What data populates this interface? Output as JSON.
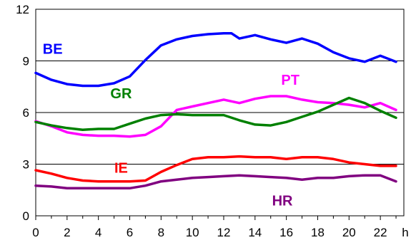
{
  "chart_data": {
    "type": "line",
    "title": "",
    "xlabel": "",
    "ylabel": "",
    "x_unit": "h",
    "xlim": [
      0,
      23.5
    ],
    "ylim": [
      0,
      12
    ],
    "x_ticks": [
      0,
      2,
      4,
      6,
      8,
      10,
      12,
      14,
      16,
      18,
      20,
      22
    ],
    "y_ticks": [
      0,
      3,
      6,
      9,
      12
    ],
    "grid": "horizontal",
    "legend": "labels-inline",
    "series": [
      {
        "name": "BE",
        "color": "#0000ff",
        "x": [
          0,
          1,
          2,
          3,
          4,
          5,
          6,
          7,
          8,
          9,
          10,
          11,
          12,
          12.5,
          13,
          14,
          15,
          16,
          17,
          18,
          19,
          20,
          21,
          22,
          23
        ],
        "values": [
          8.3,
          7.9,
          7.65,
          7.55,
          7.55,
          7.7,
          8.1,
          9.05,
          9.9,
          10.25,
          10.45,
          10.55,
          10.6,
          10.6,
          10.3,
          10.5,
          10.25,
          10.05,
          10.3,
          10.0,
          9.5,
          9.15,
          8.95,
          9.3,
          8.95
        ]
      },
      {
        "name": "PT",
        "color": "#ff00ff",
        "x": [
          0,
          1,
          2,
          3,
          4,
          5,
          6,
          7,
          8,
          9,
          10,
          11,
          12,
          13,
          14,
          15,
          16,
          17,
          18,
          19,
          20,
          21,
          22,
          23
        ],
        "values": [
          5.5,
          5.2,
          4.85,
          4.7,
          4.65,
          4.65,
          4.6,
          4.7,
          5.2,
          6.15,
          6.35,
          6.55,
          6.75,
          6.55,
          6.8,
          6.95,
          6.95,
          6.75,
          6.6,
          6.55,
          6.45,
          6.3,
          6.55,
          6.15
        ]
      },
      {
        "name": "GR",
        "color": "#008000",
        "x": [
          0,
          1,
          2,
          3,
          4,
          5,
          6,
          7,
          8,
          9,
          10,
          11,
          12,
          13,
          14,
          15,
          16,
          17,
          18,
          19,
          20,
          21,
          22,
          23
        ],
        "values": [
          5.45,
          5.25,
          5.1,
          5.0,
          5.05,
          5.05,
          5.35,
          5.65,
          5.85,
          5.9,
          5.85,
          5.85,
          5.85,
          5.55,
          5.3,
          5.25,
          5.45,
          5.75,
          6.05,
          6.45,
          6.85,
          6.55,
          6.1,
          5.7
        ]
      },
      {
        "name": "IE",
        "color": "#ff0000",
        "x": [
          0,
          1,
          2,
          3,
          4,
          5,
          6,
          7,
          8,
          9,
          10,
          11,
          12,
          13,
          14,
          15,
          16,
          17,
          18,
          19,
          20,
          21,
          22,
          23
        ],
        "values": [
          2.65,
          2.45,
          2.2,
          2.05,
          2.0,
          2.0,
          2.0,
          2.05,
          2.55,
          2.95,
          3.3,
          3.4,
          3.4,
          3.45,
          3.4,
          3.4,
          3.3,
          3.4,
          3.4,
          3.3,
          3.1,
          3.0,
          2.9,
          2.9
        ]
      },
      {
        "name": "HR",
        "color": "#800080",
        "x": [
          0,
          1,
          2,
          3,
          4,
          5,
          6,
          7,
          8,
          9,
          10,
          11,
          12,
          13,
          14,
          15,
          16,
          17,
          18,
          19,
          20,
          21,
          22,
          23
        ],
        "values": [
          1.75,
          1.7,
          1.6,
          1.6,
          1.6,
          1.6,
          1.6,
          1.75,
          2.0,
          2.1,
          2.2,
          2.25,
          2.3,
          2.35,
          2.3,
          2.25,
          2.2,
          2.1,
          2.2,
          2.2,
          2.3,
          2.35,
          2.35,
          2.0
        ]
      }
    ]
  }
}
